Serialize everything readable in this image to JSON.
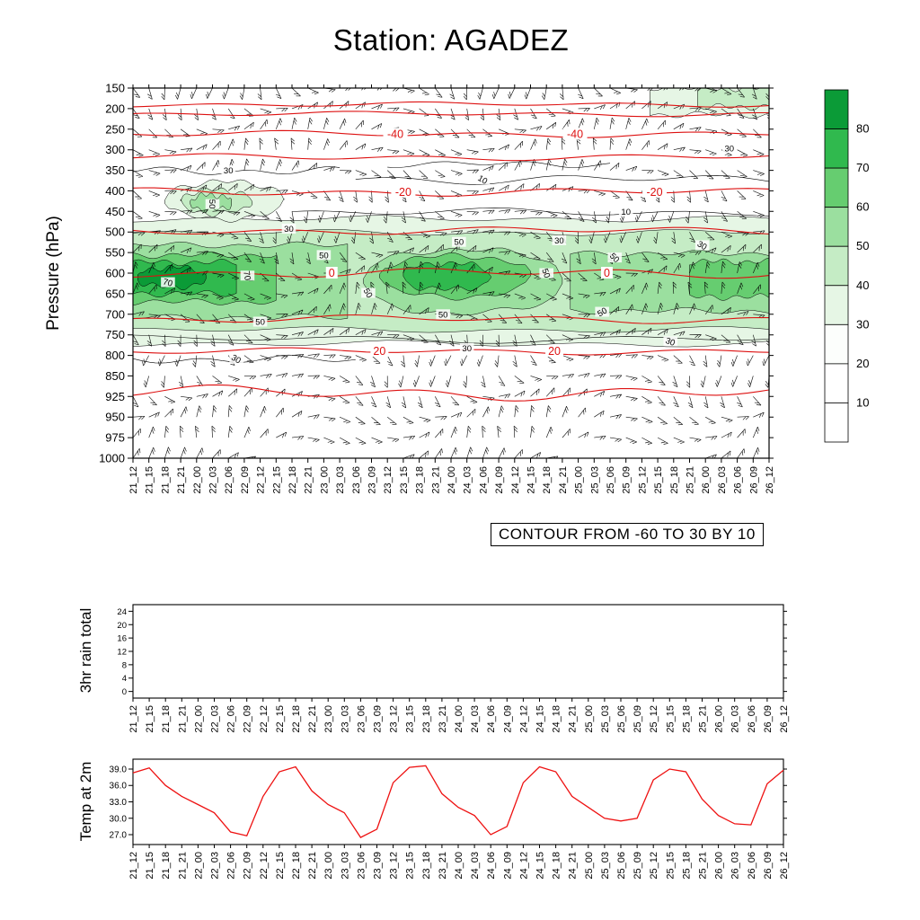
{
  "page_title": "Station: AGADEZ",
  "contour_note": "CONTOUR FROM -60 TO 30 BY 10",
  "panels": {
    "pressure_label": "Pressure (hPa)",
    "rain_label": "3hr rain total",
    "temp_label": "Temp at 2m"
  },
  "colors": {
    "contour_red": "#dd1111",
    "temp_line": "#ee1111",
    "axis_black": "#000000"
  },
  "chart_data": [
    {
      "type": "heatmap",
      "title": "Station: AGADEZ",
      "ylabel": "Pressure (hPa)",
      "has_wind_barbs": true,
      "pressure_ticks": [
        150,
        200,
        250,
        300,
        350,
        400,
        450,
        500,
        550,
        600,
        650,
        700,
        750,
        800,
        850,
        925,
        950,
        975,
        1000
      ],
      "time_ticks": [
        "21_12",
        "21_15",
        "21_18",
        "21_21",
        "22_00",
        "22_03",
        "22_06",
        "22_09",
        "22_12",
        "22_15",
        "22_18",
        "22_21",
        "23_00",
        "23_03",
        "23_06",
        "23_09",
        "23_12",
        "23_15",
        "23_18",
        "23_21",
        "24_00",
        "24_03",
        "24_06",
        "24_09",
        "24_12",
        "24_15",
        "24_18",
        "24_21",
        "25_00",
        "25_03",
        "25_06",
        "25_09",
        "25_12",
        "25_15",
        "25_18",
        "25_21",
        "26_00",
        "26_03",
        "26_06",
        "26_09",
        "26_12"
      ],
      "contour_note": "CONTOUR FROM -60 TO 30 BY 10",
      "colorbar": {
        "boundaries": [
          10,
          20,
          30,
          40,
          50,
          60,
          70,
          80
        ],
        "colors_bottom_to_top": [
          "#ffffff",
          "#ffffff",
          "#fcfefc",
          "#e6f6e5",
          "#c5ecc5",
          "#9bdf9f",
          "#66cd70",
          "#30b94e",
          "#0b9b37"
        ]
      },
      "fill_levels": {
        "30": "#e6f6e5",
        "40": "#c5ecc5",
        "50": "#9bdf9f",
        "60": "#66cd70",
        "70": "#30b94e",
        "80": "#0b9b37"
      },
      "blobs": [
        {
          "t0": -0.3,
          "t1": 40.3,
          "pTop": 468,
          "pBot": 772,
          "level": 30,
          "pinch": false,
          "seed": 1
        },
        {
          "t0": -0.3,
          "t1": 40.3,
          "pTop": 502,
          "pBot": 738,
          "level": 40,
          "pinch": false,
          "seed": 2
        },
        {
          "t0": -0.3,
          "t1": 13.5,
          "pTop": 532,
          "pBot": 708,
          "level": 50,
          "pinch": false,
          "seed": 3
        },
        {
          "t0": 14.5,
          "t1": 27.0,
          "pTop": 542,
          "pBot": 698,
          "level": 50,
          "pinch": true,
          "seed": 4
        },
        {
          "t0": 27.5,
          "t1": 40.3,
          "pTop": 552,
          "pBot": 692,
          "level": 50,
          "pinch": false,
          "seed": 5
        },
        {
          "t0": -0.3,
          "t1": 9.0,
          "pTop": 556,
          "pBot": 670,
          "level": 60,
          "pinch": false,
          "seed": 6
        },
        {
          "t0": 15.5,
          "t1": 25.0,
          "pTop": 558,
          "pBot": 658,
          "level": 60,
          "pinch": true,
          "seed": 7
        },
        {
          "t0": 35.0,
          "t1": 40.3,
          "pTop": 572,
          "pBot": 658,
          "level": 60,
          "pinch": false,
          "seed": 8
        },
        {
          "t0": -0.3,
          "t1": 6.5,
          "pTop": 574,
          "pBot": 650,
          "level": 70,
          "pinch": false,
          "seed": 9
        },
        {
          "t0": 17.0,
          "t1": 22.5,
          "pTop": 576,
          "pBot": 640,
          "level": 70,
          "pinch": true,
          "seed": 10
        },
        {
          "t0": 0.3,
          "t1": 4.6,
          "pTop": 586,
          "pBot": 634,
          "level": 80,
          "pinch": true,
          "seed": 11
        },
        {
          "t0": 2.0,
          "t1": 9.5,
          "pTop": 378,
          "pBot": 468,
          "level": 30,
          "pinch": true,
          "seed": 12
        },
        {
          "t0": 3.0,
          "t1": 7.5,
          "pTop": 398,
          "pBot": 455,
          "level": 40,
          "pinch": true,
          "seed": 13
        },
        {
          "t0": 3.6,
          "t1": 6.2,
          "pTop": 410,
          "pBot": 446,
          "level": 50,
          "pinch": true,
          "seed": 14
        },
        {
          "t0": 32.5,
          "t1": 40.3,
          "pTop": 150,
          "pBot": 215,
          "level": 30,
          "pinch": false,
          "seed": 15
        },
        {
          "t0": 35.5,
          "t1": 40.3,
          "pTop": 151,
          "pBot": 196,
          "level": 40,
          "pinch": false,
          "seed": 16
        }
      ],
      "red_contours": [
        {
          "p": 190,
          "amp": 3,
          "seed": 1,
          "labels": []
        },
        {
          "p": 213,
          "amp": 3,
          "seed": 2,
          "labels": []
        },
        {
          "p": 262,
          "amp": 4,
          "seed": 3,
          "labels": [
            {
              "t": 16.5,
              "text": "-40"
            },
            {
              "t": 27.8,
              "text": "-40"
            }
          ]
        },
        {
          "p": 318,
          "amp": 4,
          "seed": 4,
          "labels": []
        },
        {
          "p": 403,
          "amp": 5,
          "seed": 5,
          "labels": [
            {
              "t": 17.0,
              "text": "-20"
            },
            {
              "t": 32.8,
              "text": "-20"
            }
          ]
        },
        {
          "p": 497,
          "amp": 5,
          "seed": 6,
          "labels": []
        },
        {
          "p": 600,
          "amp": 6,
          "seed": 7,
          "labels": [
            {
              "t": 12.5,
              "text": "0"
            },
            {
              "t": 29.8,
              "text": "0"
            }
          ]
        },
        {
          "p": 712,
          "amp": 5,
          "seed": 8,
          "labels": []
        },
        {
          "p": 790,
          "amp": 4,
          "seed": 9,
          "labels": [
            {
              "t": 15.5,
              "text": "20"
            },
            {
              "t": 26.5,
              "text": "20"
            }
          ]
        },
        {
          "p": 912,
          "amp": 9,
          "seed": 10,
          "labels": []
        }
      ],
      "black_contours": [
        {
          "p": 352,
          "t0": 0,
          "t1": 13,
          "amp": 5,
          "seed": 21
        },
        {
          "p": 372,
          "t0": 14,
          "t1": 40,
          "amp": 6,
          "seed": 22
        },
        {
          "p": 452,
          "t0": 10,
          "t1": 40,
          "amp": 5,
          "seed": 23
        },
        {
          "p": 760,
          "t0": 0,
          "t1": 40,
          "amp": 5,
          "seed": 24
        },
        {
          "p": 810,
          "t0": 0,
          "t1": 14,
          "amp": 5,
          "seed": 25
        },
        {
          "p": 335,
          "t0": 16,
          "t1": 30,
          "amp": 4,
          "seed": 26
        }
      ],
      "black_labels": [
        {
          "t": 6.0,
          "p": 350,
          "text": "30",
          "rot": 0
        },
        {
          "t": 22.0,
          "p": 372,
          "text": "10",
          "rot": 30
        },
        {
          "t": 31.0,
          "p": 450,
          "text": "10",
          "rot": 0
        },
        {
          "t": 5.0,
          "p": 432,
          "text": "50",
          "rot": 90
        },
        {
          "t": 2.2,
          "p": 622,
          "text": "70",
          "rot": 15
        },
        {
          "t": 7.2,
          "p": 606,
          "text": "70",
          "rot": 80
        },
        {
          "t": 9.8,
          "p": 492,
          "text": "30",
          "rot": 0
        },
        {
          "t": 12.0,
          "p": 556,
          "text": "50",
          "rot": 0
        },
        {
          "t": 14.8,
          "p": 648,
          "text": "50",
          "rot": 60
        },
        {
          "t": 20.5,
          "p": 524,
          "text": "50",
          "rot": 0
        },
        {
          "t": 26.8,
          "p": 520,
          "text": "30",
          "rot": 0
        },
        {
          "t": 30.3,
          "p": 562,
          "text": "50",
          "rot": 45
        },
        {
          "t": 35.8,
          "p": 532,
          "text": "30",
          "rot": 30
        },
        {
          "t": 8.0,
          "p": 718,
          "text": "50",
          "rot": 0
        },
        {
          "t": 19.5,
          "p": 700,
          "text": "50",
          "rot": 0
        },
        {
          "t": 29.5,
          "p": 694,
          "text": "50",
          "rot": -30
        },
        {
          "t": 33.8,
          "p": 766,
          "text": "30",
          "rot": 20
        },
        {
          "t": 6.5,
          "p": 808,
          "text": "30",
          "rot": 30
        },
        {
          "t": 21.0,
          "p": 782,
          "text": "30",
          "rot": 0
        },
        {
          "t": 26.0,
          "p": 600,
          "text": "50",
          "rot": 70
        },
        {
          "t": 37.5,
          "p": 296,
          "text": "30",
          "rot": 0
        }
      ]
    },
    {
      "type": "line",
      "ylabel": "3hr rain total",
      "y_ticks": [
        0,
        4,
        8,
        12,
        16,
        20,
        24
      ],
      "x_same_as_chart": 0,
      "values": [
        0,
        0,
        0,
        0,
        0,
        0,
        0,
        0,
        0,
        0,
        0,
        0,
        0,
        0,
        0,
        0,
        0,
        0,
        0,
        0,
        0,
        0,
        0,
        0,
        0,
        0,
        0,
        0,
        0,
        0,
        0,
        0,
        0,
        0,
        0,
        0,
        0,
        0,
        0,
        0,
        0
      ]
    },
    {
      "type": "line",
      "ylabel": "Temp at 2m",
      "y_tick_labels": [
        "27.0",
        "30.0",
        "33.0",
        "36.0",
        "39.0"
      ],
      "x_same_as_chart": 0,
      "values": [
        38.3,
        39.2,
        36.0,
        34.0,
        32.5,
        31.0,
        27.5,
        26.8,
        34.0,
        38.5,
        39.4,
        35.0,
        32.5,
        31.0,
        26.5,
        28.0,
        36.5,
        39.3,
        39.6,
        34.5,
        32.0,
        30.5,
        27.0,
        28.5,
        36.5,
        39.4,
        38.5,
        34.0,
        32.0,
        30.0,
        29.5,
        30.0,
        37.0,
        39.0,
        38.5,
        33.5,
        30.5,
        29.0,
        28.8,
        36.3,
        38.8
      ]
    }
  ]
}
